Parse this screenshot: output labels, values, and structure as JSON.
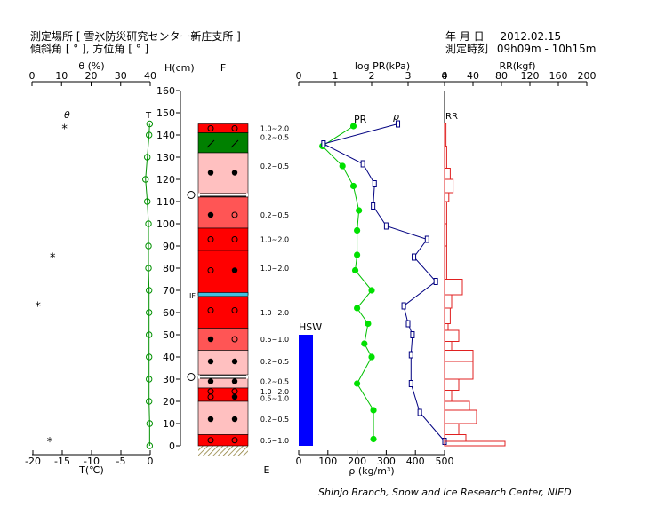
{
  "header": {
    "location_label": "測定場所",
    "location_value": "[ 雪氷防災研究センター新庄支所 ]",
    "slope_label": "傾斜角 [ ° ], 方位角 [ ° ]",
    "date_label": "年 月 日",
    "date_value": "2012.02.15",
    "time_label": "測定時刻",
    "time_value": "09h09m - 10h15m"
  },
  "footer": {
    "credit": "Shinjo Branch, Snow and Ice Research Center, NIED"
  },
  "chart_data": {
    "type": "snow_profile",
    "height_axis": {
      "label": "H(cm)",
      "min": 0,
      "max": 160,
      "ticks": [
        0,
        10,
        20,
        30,
        40,
        50,
        60,
        70,
        80,
        90,
        100,
        110,
        120,
        130,
        140,
        150,
        160
      ]
    },
    "temperature": {
      "top_label": "θ (%)",
      "top_ticks": [
        0,
        10,
        20,
        30,
        40
      ],
      "bottom_label": "T(℃)",
      "bottom_ticks": [
        -20,
        -15,
        -10,
        -5,
        0
      ],
      "theta_label": "θ",
      "t_label": "T",
      "series_T": [
        {
          "h": 145,
          "t": -0.1
        },
        {
          "h": 140,
          "t": -0.2
        },
        {
          "h": 130,
          "t": -0.5
        },
        {
          "h": 120,
          "t": -0.8
        },
        {
          "h": 110,
          "t": -0.5
        },
        {
          "h": 100,
          "t": -0.3
        },
        {
          "h": 90,
          "t": -0.3
        },
        {
          "h": 80,
          "t": -0.3
        },
        {
          "h": 70,
          "t": -0.2
        },
        {
          "h": 60,
          "t": -0.2
        },
        {
          "h": 50,
          "t": -0.2
        },
        {
          "h": 40,
          "t": -0.2
        },
        {
          "h": 30,
          "t": -0.2
        },
        {
          "h": 20,
          "t": -0.2
        },
        {
          "h": 10,
          "t": -0.1
        },
        {
          "h": 0,
          "t": -0.1
        }
      ],
      "theta_points": [
        {
          "h": 143,
          "theta": 11
        },
        {
          "h": 85,
          "theta": 7
        },
        {
          "h": 63,
          "theta": 2
        },
        {
          "h": 2,
          "theta": 6
        }
      ]
    },
    "stratigraphy": {
      "column_label": "F",
      "bottom_label": "E",
      "interface_label": "IF",
      "layers": [
        {
          "bottom": 141,
          "top": 145,
          "color": "#ff0000"
        },
        {
          "bottom": 132,
          "top": 141,
          "color": "#008000"
        },
        {
          "bottom": 112,
          "top": 132,
          "color": "#ffc0c0"
        },
        {
          "bottom": 98,
          "top": 112,
          "color": "#ff5555"
        },
        {
          "bottom": 88,
          "top": 98,
          "color": "#ff0000"
        },
        {
          "bottom": 68,
          "top": 88,
          "color": "#ff0000"
        },
        {
          "bottom": 53,
          "top": 67,
          "color": "#ff0000"
        },
        {
          "bottom": 43,
          "top": 53,
          "color": "#ff5555"
        },
        {
          "bottom": 32,
          "top": 43,
          "color": "#ffc0c0"
        },
        {
          "bottom": 26,
          "top": 31,
          "color": "#ffc0c0"
        },
        {
          "bottom": 20,
          "top": 26,
          "color": "#ff0000"
        },
        {
          "bottom": 5,
          "top": 20,
          "color": "#ffc0c0"
        },
        {
          "bottom": 0,
          "top": 5,
          "color": "#ff0000"
        }
      ],
      "interface_height": 68,
      "marked_boundaries": [
        113,
        31
      ],
      "grain_sizes": [
        {
          "h": 143,
          "text": "1.0~2.0"
        },
        {
          "h": 139,
          "text": "0.2~0.5"
        },
        {
          "h": 126,
          "text": "0.2~0.5"
        },
        {
          "h": 104,
          "text": "0.2~0.5"
        },
        {
          "h": 93,
          "text": "1.0~2.0"
        },
        {
          "h": 80,
          "text": "1.0~2.0"
        },
        {
          "h": 60,
          "text": "1.0~2.0"
        },
        {
          "h": 48,
          "text": "0.5~1.0"
        },
        {
          "h": 38,
          "text": "0.2~0.5"
        },
        {
          "h": 29,
          "text": "0.2~0.5"
        },
        {
          "h": 24.5,
          "text": "1.0~2.0"
        },
        {
          "h": 21.5,
          "text": "0.5~1.0"
        },
        {
          "h": 12,
          "text": "0.2~0.5"
        },
        {
          "h": 2.5,
          "text": "0.5~1.0"
        }
      ]
    },
    "density": {
      "top_label": "log PR(kPa)",
      "top_ticks": [
        0,
        1,
        2,
        3,
        4
      ],
      "bottom_label": "ρ (kg/m³)",
      "bottom_ticks": [
        0,
        100,
        200,
        300,
        400,
        500
      ],
      "pr_label": "PR",
      "rho_label": "ρ",
      "hsw_label": "HSW",
      "hsw_value": 50,
      "pr_series": [
        {
          "h": 144,
          "log_pr": 1.5
        },
        {
          "h": 135,
          "log_pr": 0.65
        },
        {
          "h": 126,
          "log_pr": 1.2
        },
        {
          "h": 117,
          "log_pr": 1.5
        },
        {
          "h": 106,
          "log_pr": 1.65
        },
        {
          "h": 97,
          "log_pr": 1.6
        },
        {
          "h": 86,
          "log_pr": 1.6
        },
        {
          "h": 79,
          "log_pr": 1.55
        },
        {
          "h": 70,
          "log_pr": 2.0
        },
        {
          "h": 62,
          "log_pr": 1.6
        },
        {
          "h": 55,
          "log_pr": 1.9
        },
        {
          "h": 46,
          "log_pr": 1.8
        },
        {
          "h": 40,
          "log_pr": 2.0
        },
        {
          "h": 28,
          "log_pr": 1.6
        },
        {
          "h": 16,
          "log_pr": 2.05
        },
        {
          "h": 3,
          "log_pr": 2.05
        }
      ],
      "rho_series": [
        {
          "h": 145,
          "rho": 340
        },
        {
          "h": 136,
          "rho": 85
        },
        {
          "h": 127,
          "rho": 220
        },
        {
          "h": 118,
          "rho": 260
        },
        {
          "h": 108,
          "rho": 255
        },
        {
          "h": 99,
          "rho": 300
        },
        {
          "h": 93,
          "rho": 440
        },
        {
          "h": 85,
          "rho": 395
        },
        {
          "h": 74,
          "rho": 470
        },
        {
          "h": 63,
          "rho": 360
        },
        {
          "h": 55,
          "rho": 375
        },
        {
          "h": 50,
          "rho": 390
        },
        {
          "h": 41,
          "rho": 385
        },
        {
          "h": 28,
          "rho": 385
        },
        {
          "h": 15,
          "rho": 415
        },
        {
          "h": 2,
          "rho": 500
        }
      ]
    },
    "ram": {
      "top_label": "RR(kgf)",
      "top_ticks": [
        0,
        40,
        80,
        120,
        160,
        200
      ],
      "rr_label": "RR",
      "steps": [
        {
          "bottom": 135,
          "top": 145,
          "rr": 2
        },
        {
          "bottom": 125,
          "top": 135,
          "rr": 3
        },
        {
          "bottom": 120,
          "top": 125,
          "rr": 8
        },
        {
          "bottom": 114,
          "top": 120,
          "rr": 12
        },
        {
          "bottom": 110,
          "top": 114,
          "rr": 6
        },
        {
          "bottom": 100,
          "top": 110,
          "rr": 3
        },
        {
          "bottom": 90,
          "top": 100,
          "rr": 3
        },
        {
          "bottom": 75,
          "top": 90,
          "rr": 3
        },
        {
          "bottom": 68,
          "top": 75,
          "rr": 25
        },
        {
          "bottom": 62,
          "top": 68,
          "rr": 10
        },
        {
          "bottom": 55,
          "top": 62,
          "rr": 8
        },
        {
          "bottom": 52,
          "top": 55,
          "rr": 5
        },
        {
          "bottom": 47,
          "top": 52,
          "rr": 20
        },
        {
          "bottom": 43,
          "top": 47,
          "rr": 10
        },
        {
          "bottom": 38,
          "top": 43,
          "rr": 40
        },
        {
          "bottom": 35,
          "top": 38,
          "rr": 40
        },
        {
          "bottom": 30,
          "top": 35,
          "rr": 40
        },
        {
          "bottom": 25,
          "top": 30,
          "rr": 20
        },
        {
          "bottom": 20,
          "top": 25,
          "rr": 10
        },
        {
          "bottom": 16,
          "top": 20,
          "rr": 35
        },
        {
          "bottom": 10,
          "top": 16,
          "rr": 45
        },
        {
          "bottom": 5,
          "top": 10,
          "rr": 20
        },
        {
          "bottom": 2,
          "top": 5,
          "rr": 30
        },
        {
          "bottom": 0,
          "top": 2,
          "rr": 85
        }
      ]
    }
  }
}
